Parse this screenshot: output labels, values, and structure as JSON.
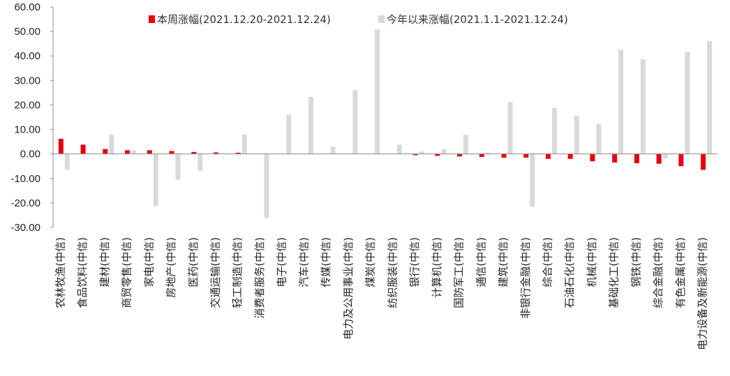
{
  "chart_data": {
    "type": "bar",
    "title": "",
    "xlabel": "",
    "ylabel": "",
    "ylim": [
      -30,
      60
    ],
    "yticks": [
      "60.00",
      "50.00",
      "40.00",
      "30.00",
      "20.00",
      "10.00",
      "0.00",
      "-10.00",
      "-20.00",
      "-30.00"
    ],
    "grid": false,
    "legend_position": "top",
    "categories": [
      "农林牧渔(中信)",
      "食品饮料(中信)",
      "建材(中信)",
      "商贸零售(中信)",
      "家电(中信)",
      "房地产(中信)",
      "医药(中信)",
      "交通运输(中信)",
      "轻工制造(中信)",
      "消费者服务(中信)",
      "电子(中信)",
      "汽车(中信)",
      "传媒(中信)",
      "电力及公用事业(中信)",
      "煤炭(中信)",
      "纺织服装(中信)",
      "银行(中信)",
      "计算机(中信)",
      "国防军工(中信)",
      "通信(中信)",
      "建筑(中信)",
      "非银行金融(中信)",
      "综合(中信)",
      "石油石化(中信)",
      "机械(中信)",
      "基础化工(中信)",
      "钢铁(中信)",
      "综合金融(中信)",
      "有色金属(中信)",
      "电力设备及新能源(中信)"
    ],
    "series": [
      {
        "name": "本周涨幅(2021.12.20-2021.12.24)",
        "color": "#e8000b",
        "values": [
          6.2,
          3.8,
          2.0,
          1.5,
          1.5,
          1.2,
          0.8,
          0.6,
          0.5,
          0.0,
          0.0,
          0.0,
          0.0,
          0.0,
          0.0,
          0.0,
          -0.5,
          -0.8,
          -1.0,
          -1.2,
          -1.5,
          -1.5,
          -2.0,
          -2.0,
          -3.0,
          -3.5,
          -3.8,
          -4.0,
          -5.0,
          -6.5
        ]
      },
      {
        "name": "今年以来涨幅(2021.1.1-2021.12.24)",
        "color": "#d9d9d9",
        "values": [
          -6.5,
          0.0,
          7.8,
          1.5,
          -21.3,
          -10.5,
          -7.0,
          0.2,
          8.0,
          -26.2,
          16.0,
          23.3,
          3.0,
          26.1,
          50.8,
          3.8,
          1.0,
          2.0,
          7.8,
          0.5,
          21.2,
          -21.5,
          18.7,
          15.6,
          12.3,
          42.5,
          38.6,
          -1.8,
          41.7,
          46.0
        ]
      }
    ]
  }
}
